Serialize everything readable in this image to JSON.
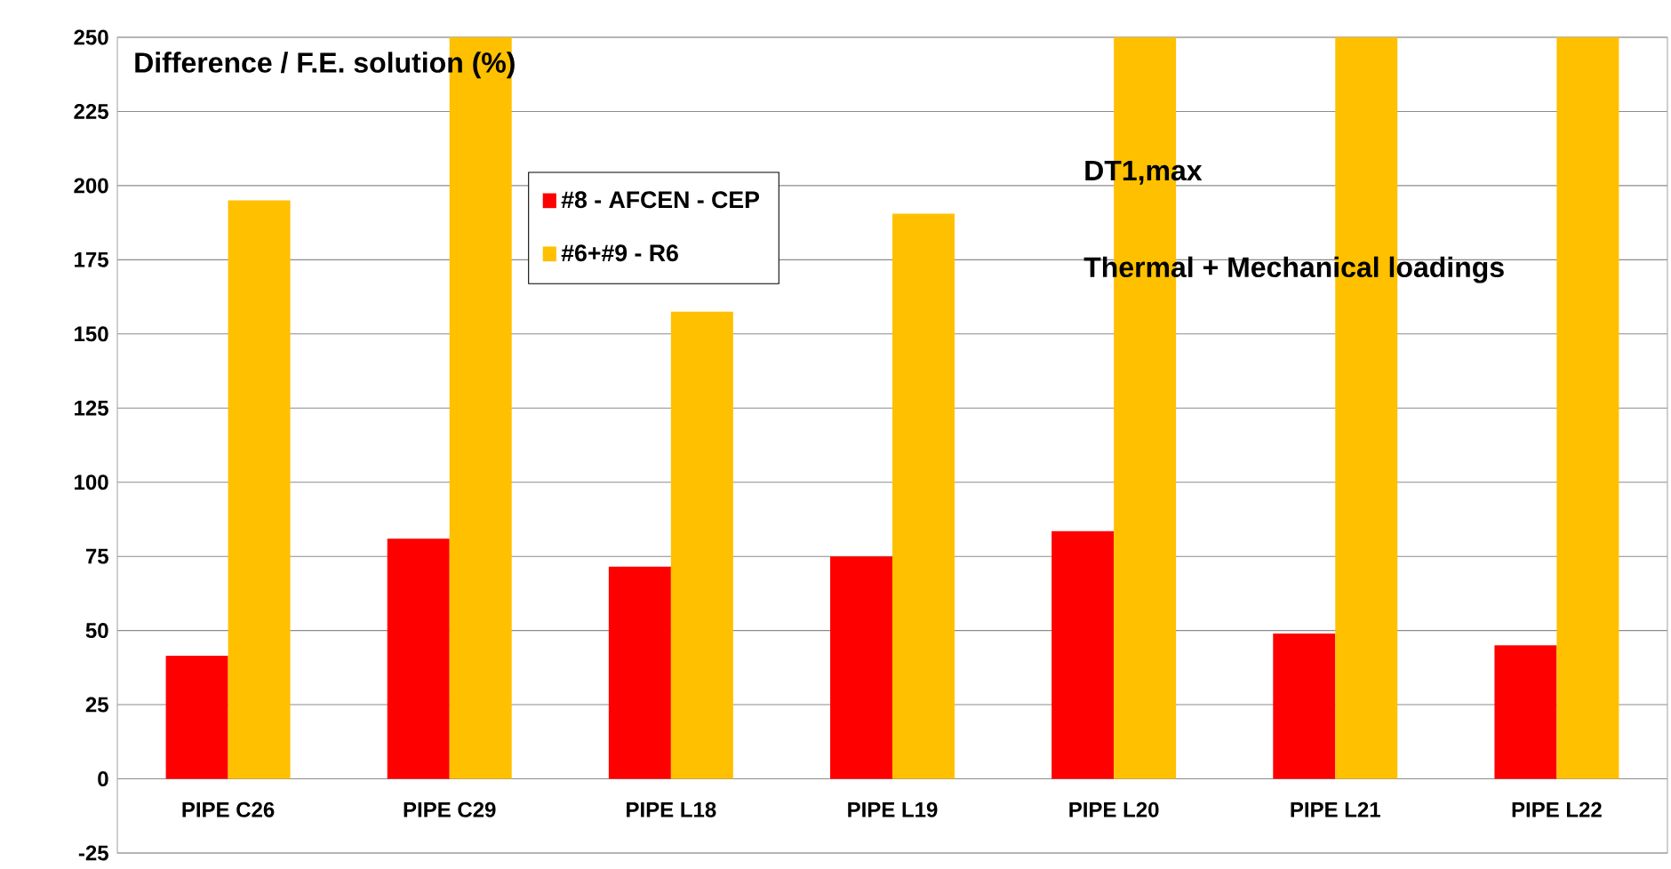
{
  "chart_data": {
    "type": "bar",
    "title": "Difference / F.E. solution (%)",
    "categories": [
      "PIPE C26",
      "PIPE C29",
      "PIPE L18",
      "PIPE L19",
      "PIPE L20",
      "PIPE L21",
      "PIPE L22"
    ],
    "series": [
      {
        "name": "#8 - AFCEN - CEP",
        "color": "#ff0000",
        "values": [
          41.5,
          81,
          71.5,
          75,
          83.5,
          49,
          45
        ]
      },
      {
        "name": "#6+#9 - R6",
        "color": "#ffc000",
        "values": [
          195,
          250,
          157.5,
          190.5,
          250,
          250,
          250
        ]
      }
    ],
    "ylim": [
      -25,
      250
    ],
    "yticks": [
      -25,
      0,
      25,
      50,
      75,
      100,
      125,
      150,
      175,
      200,
      225,
      250
    ],
    "grid": "y",
    "legend": "top",
    "annotations": [
      "DT1,max",
      "Thermal + Mechanical loadings"
    ]
  }
}
